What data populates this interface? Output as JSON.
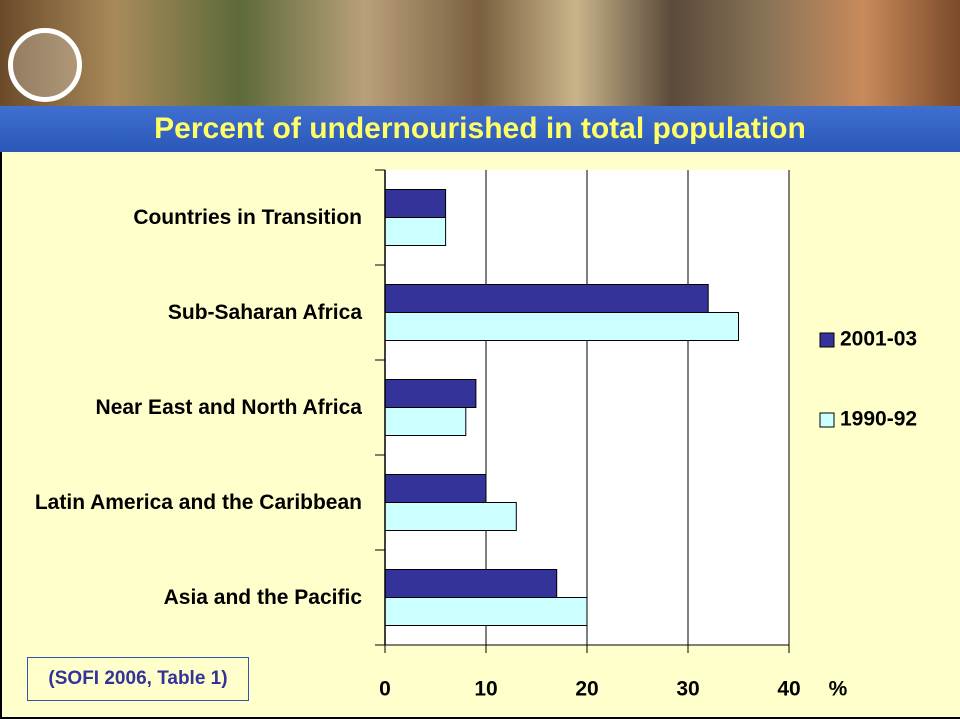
{
  "chart_data": {
    "type": "bar",
    "orientation": "horizontal",
    "title": "Percent of undernourished in total population",
    "categories": [
      "Countries in Transition",
      "Sub-Saharan Africa",
      "Near East and North Africa",
      "Latin America and the Caribbean",
      "Asia and the Pacific"
    ],
    "series": [
      {
        "name": "2001-03",
        "color": "#333399",
        "values": [
          6,
          32,
          9,
          10,
          17
        ]
      },
      {
        "name": "1990-92",
        "color": "#ccffff",
        "values": [
          6,
          35,
          8,
          13,
          20
        ]
      }
    ],
    "x_label": "%",
    "xlim": [
      0,
      40
    ],
    "xticks": [
      0,
      10,
      20,
      30,
      40
    ],
    "grid": true,
    "legend": "right",
    "source": "(SOFI 2006, Table 1)"
  }
}
